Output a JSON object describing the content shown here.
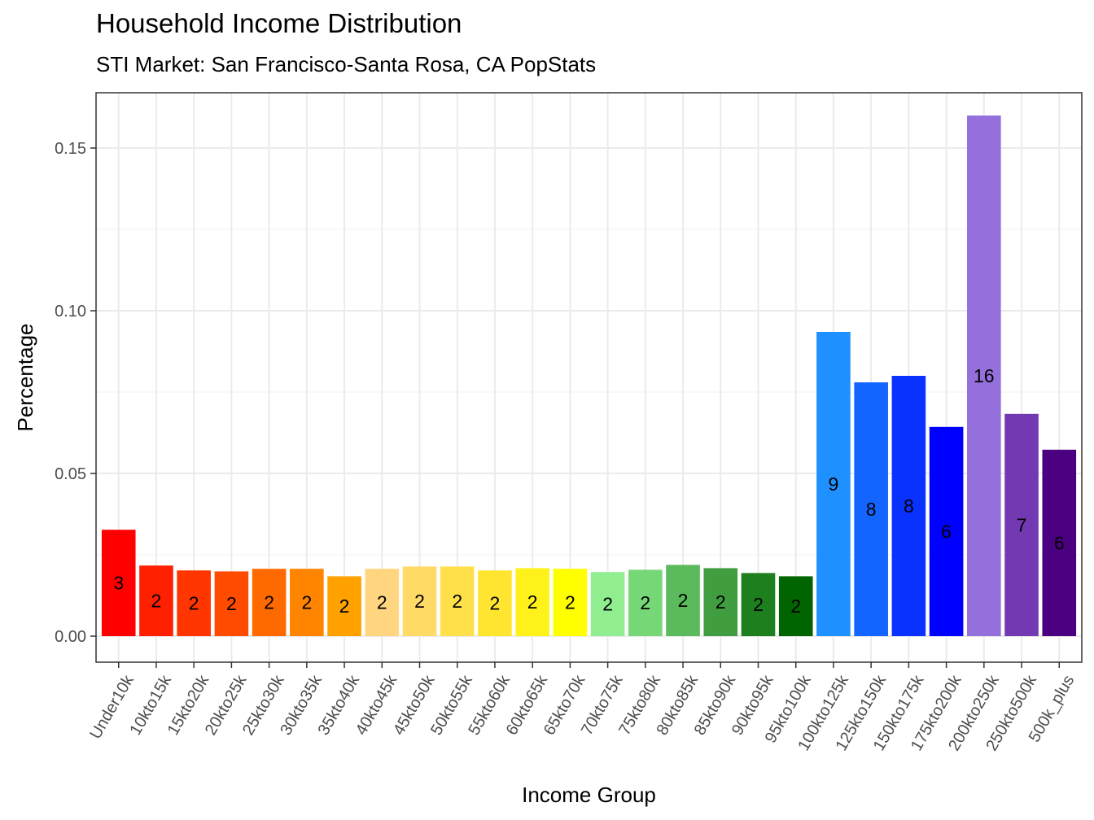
{
  "chart_data": {
    "type": "bar",
    "title": "Household Income Distribution",
    "subtitle": "STI Market: San Francisco-Santa Rosa, CA PopStats",
    "xlabel": "Income Group",
    "ylabel": "Percentage",
    "ylim": [
      -0.008,
      0.167
    ],
    "yticks": [
      0.0,
      0.05,
      0.1,
      0.15
    ],
    "ytick_labels": [
      "0.00",
      "0.05",
      "0.10",
      "0.15"
    ],
    "grid": true,
    "categories": [
      "Under10k",
      "10kto15k",
      "15kto20k",
      "20kto25k",
      "25kto30k",
      "30kto35k",
      "35kto40k",
      "40kto45k",
      "45kto50k",
      "50kto55k",
      "55kto60k",
      "60kto65k",
      "65kto70k",
      "70kto75k",
      "75kto80k",
      "80kto85k",
      "85kto90k",
      "90kto95k",
      "95kto100k",
      "100kto125k",
      "125kto150k",
      "150kto175k",
      "175kto200k",
      "200kto250k",
      "250kto500k",
      "500k_plus"
    ],
    "values": [
      0.0327,
      0.0217,
      0.0202,
      0.0199,
      0.0207,
      0.0207,
      0.0184,
      0.0207,
      0.0214,
      0.0214,
      0.0202,
      0.0209,
      0.0207,
      0.0197,
      0.0204,
      0.0219,
      0.0209,
      0.0194,
      0.0184,
      0.0935,
      0.078,
      0.08,
      0.0643,
      0.16,
      0.0683,
      0.0573
    ],
    "labels": [
      "3",
      "2",
      "2",
      "2",
      "2",
      "2",
      "2",
      "2",
      "2",
      "2",
      "2",
      "2",
      "2",
      "2",
      "2",
      "2",
      "2",
      "2",
      "2",
      "9",
      "8",
      "8",
      "6",
      "16",
      "7",
      "6"
    ],
    "colors": [
      "#FF0000",
      "#FF2000",
      "#FF3600",
      "#FF4B00",
      "#FF6A00",
      "#FF8400",
      "#FFA200",
      "#FFD580",
      "#FFDA66",
      "#FFE04A",
      "#FFE530",
      "#FFF21A",
      "#FFFF00",
      "#90EE90",
      "#76D776",
      "#5BBA5B",
      "#409E40",
      "#1E7F1E",
      "#006400",
      "#1E90FF",
      "#1464FF",
      "#0A32FF",
      "#0000FF",
      "#9370DB",
      "#7339B3",
      "#4B0082"
    ],
    "label_offsets": [
      0.5,
      0.5,
      0.5,
      0.5,
      0.5,
      0.5,
      0.5,
      0.5,
      0.5,
      0.5,
      0.5,
      0.5,
      0.5,
      0.5,
      0.5,
      0.5,
      0.5,
      0.5,
      0.5,
      0.5,
      0.5,
      0.5,
      0.5,
      0.5,
      0.5,
      0.5
    ]
  }
}
